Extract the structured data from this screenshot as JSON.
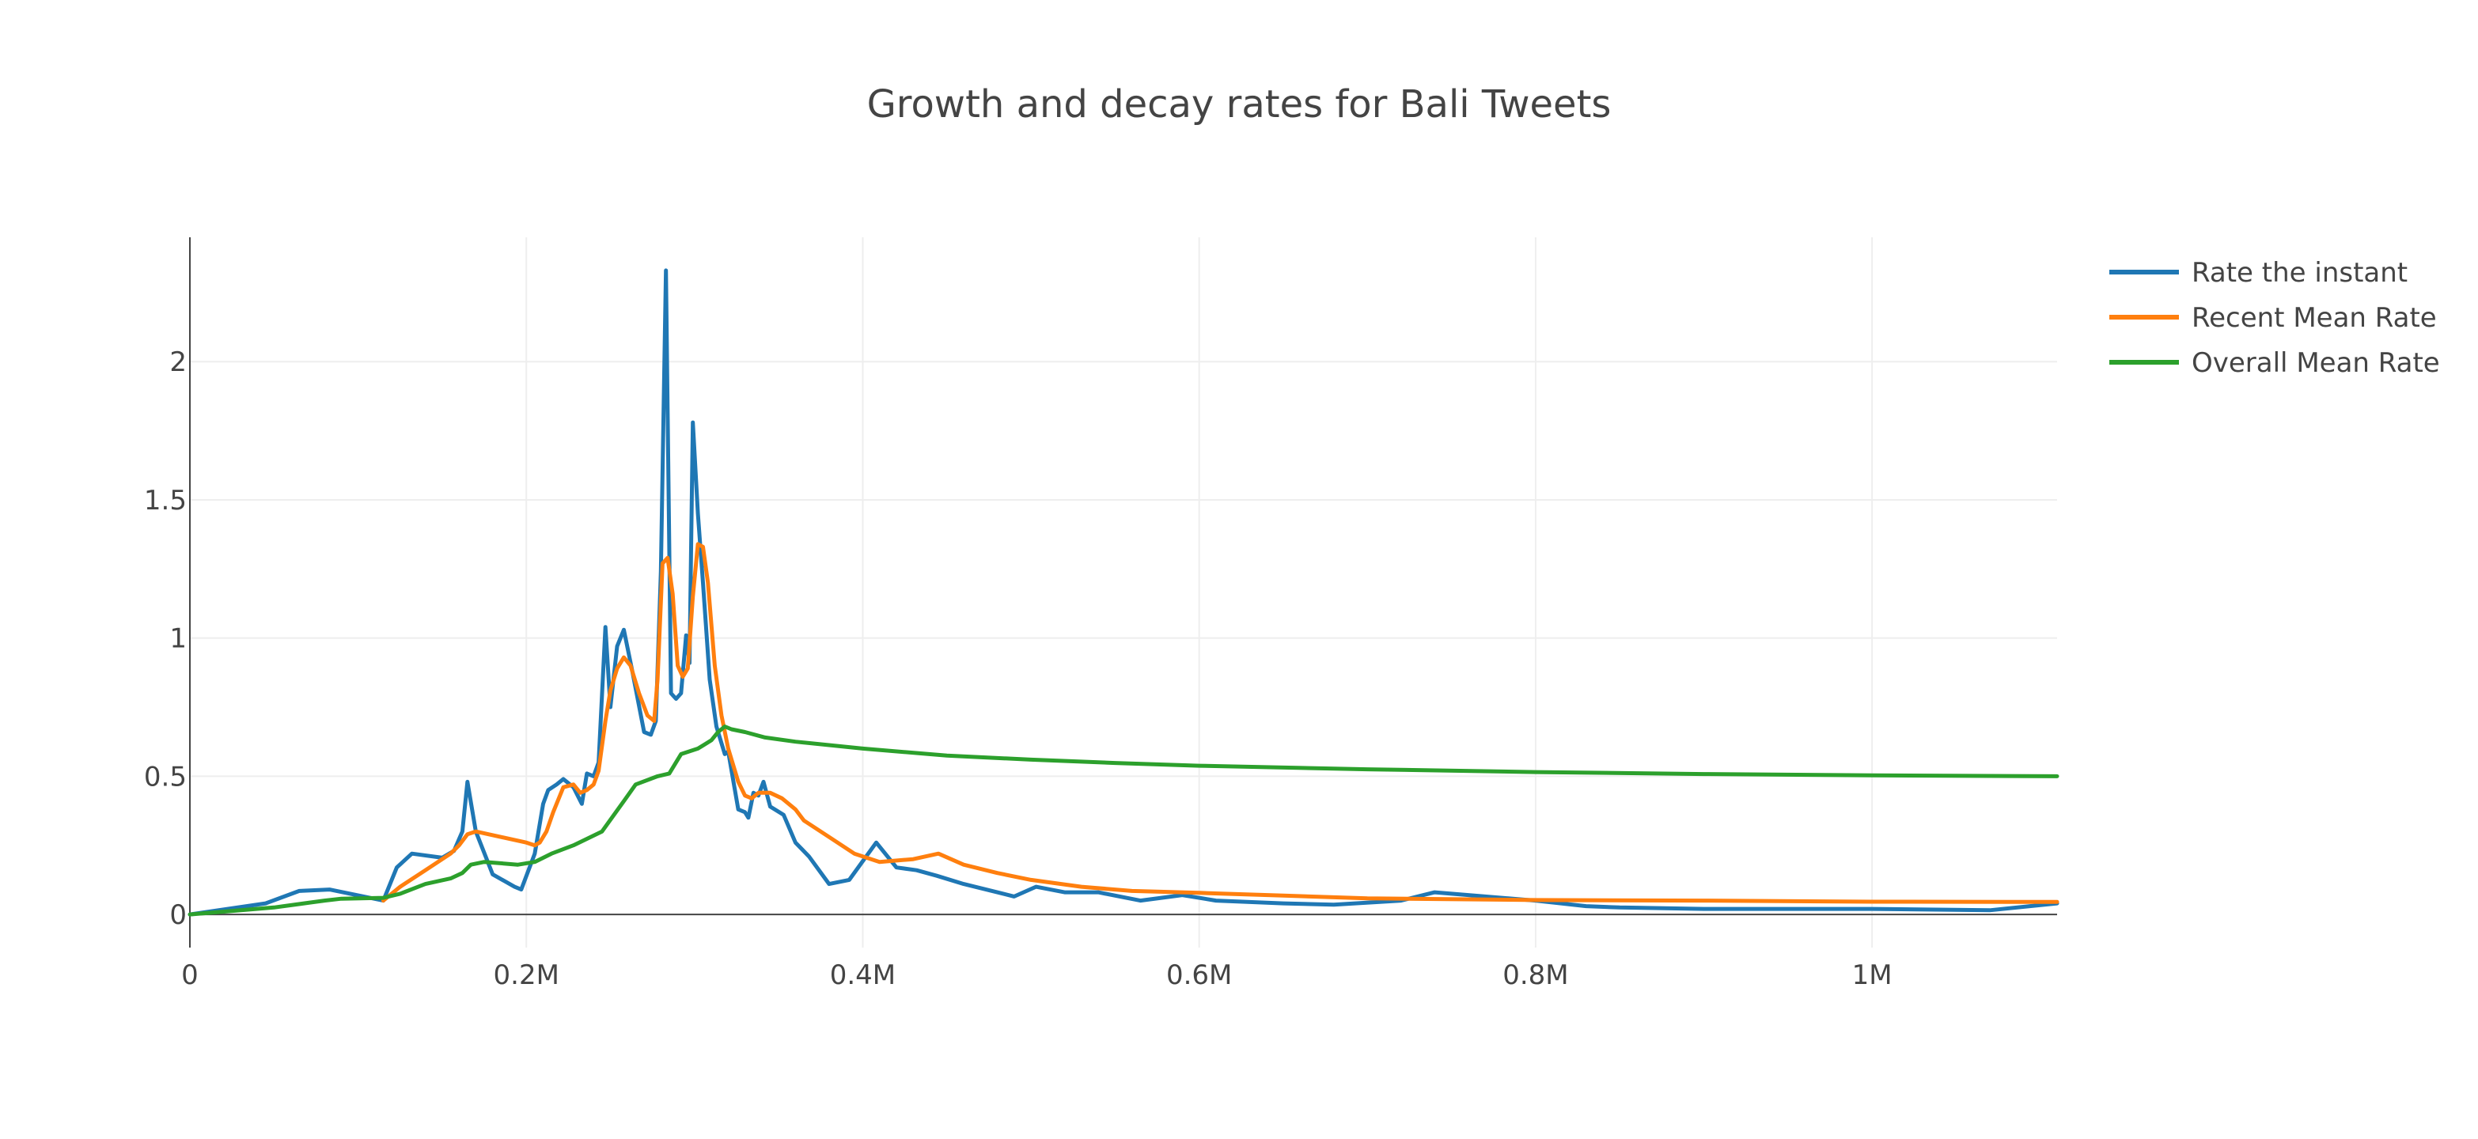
{
  "chart_data": {
    "type": "line",
    "title": "Growth and decay rates for Bali Tweets",
    "xlabel": "",
    "ylabel": "",
    "xlim": [
      0,
      1110000
    ],
    "ylim": [
      -0.12,
      2.45
    ],
    "grid": true,
    "legend_position": "top-right",
    "x_ticks": [
      {
        "value": 0,
        "label": "0"
      },
      {
        "value": 200000,
        "label": "0.2M"
      },
      {
        "value": 400000,
        "label": "0.4M"
      },
      {
        "value": 600000,
        "label": "0.6M"
      },
      {
        "value": 800000,
        "label": "0.8M"
      },
      {
        "value": 1000000,
        "label": "1M"
      }
    ],
    "y_ticks": [
      {
        "value": 0,
        "label": "0"
      },
      {
        "value": 0.5,
        "label": "0.5"
      },
      {
        "value": 1,
        "label": "1"
      },
      {
        "value": 1.5,
        "label": "1.5"
      },
      {
        "value": 2,
        "label": "2"
      }
    ],
    "series": [
      {
        "name": "Rate the instant",
        "color": "#1f77b4",
        "points": [
          [
            0,
            0
          ],
          [
            45000,
            0.04
          ],
          [
            65000,
            0.085
          ],
          [
            83000,
            0.09
          ],
          [
            115000,
            0.05
          ],
          [
            123000,
            0.17
          ],
          [
            132000,
            0.22
          ],
          [
            150000,
            0.205
          ],
          [
            157000,
            0.23
          ],
          [
            162000,
            0.3
          ],
          [
            165000,
            0.48
          ],
          [
            170000,
            0.3
          ],
          [
            180000,
            0.145
          ],
          [
            193000,
            0.1
          ],
          [
            197000,
            0.09
          ],
          [
            205000,
            0.22
          ],
          [
            210000,
            0.4
          ],
          [
            213000,
            0.45
          ],
          [
            218000,
            0.47
          ],
          [
            222000,
            0.49
          ],
          [
            228000,
            0.46
          ],
          [
            233000,
            0.4
          ],
          [
            236000,
            0.51
          ],
          [
            240000,
            0.5
          ],
          [
            243000,
            0.55
          ],
          [
            247000,
            1.04
          ],
          [
            250000,
            0.75
          ],
          [
            254000,
            0.97
          ],
          [
            258000,
            1.03
          ],
          [
            263000,
            0.88
          ],
          [
            270000,
            0.66
          ],
          [
            274000,
            0.65
          ],
          [
            277000,
            0.7
          ],
          [
            280000,
            1.24
          ],
          [
            283000,
            2.33
          ],
          [
            286000,
            0.8
          ],
          [
            289000,
            0.78
          ],
          [
            292000,
            0.8
          ],
          [
            295000,
            1.01
          ],
          [
            297000,
            0.91
          ],
          [
            299000,
            1.78
          ],
          [
            302000,
            1.45
          ],
          [
            305000,
            1.2
          ],
          [
            309000,
            0.85
          ],
          [
            313000,
            0.68
          ],
          [
            318000,
            0.58
          ],
          [
            320000,
            0.59
          ],
          [
            326000,
            0.38
          ],
          [
            330000,
            0.37
          ],
          [
            332000,
            0.35
          ],
          [
            335000,
            0.44
          ],
          [
            338000,
            0.43
          ],
          [
            341000,
            0.48
          ],
          [
            345000,
            0.39
          ],
          [
            353000,
            0.36
          ],
          [
            360000,
            0.26
          ],
          [
            368000,
            0.21
          ],
          [
            380000,
            0.11
          ],
          [
            392000,
            0.125
          ],
          [
            408000,
            0.26
          ],
          [
            420000,
            0.17
          ],
          [
            432000,
            0.16
          ],
          [
            444000,
            0.14
          ],
          [
            460000,
            0.11
          ],
          [
            480000,
            0.08
          ],
          [
            490000,
            0.065
          ],
          [
            503000,
            0.1
          ],
          [
            520000,
            0.08
          ],
          [
            540000,
            0.08
          ],
          [
            565000,
            0.05
          ],
          [
            590000,
            0.07
          ],
          [
            610000,
            0.05
          ],
          [
            650000,
            0.04
          ],
          [
            680000,
            0.035
          ],
          [
            720000,
            0.05
          ],
          [
            740000,
            0.08
          ],
          [
            770000,
            0.065
          ],
          [
            800000,
            0.05
          ],
          [
            830000,
            0.03
          ],
          [
            850000,
            0.025
          ],
          [
            900000,
            0.02
          ],
          [
            950000,
            0.02
          ],
          [
            1000000,
            0.02
          ],
          [
            1070000,
            0.015
          ],
          [
            1110000,
            0.04
          ]
        ]
      },
      {
        "name": "Recent Mean Rate",
        "color": "#ff7f0e",
        "points": [
          [
            115000,
            0.05
          ],
          [
            125000,
            0.1
          ],
          [
            140000,
            0.16
          ],
          [
            155000,
            0.22
          ],
          [
            160000,
            0.25
          ],
          [
            165000,
            0.29
          ],
          [
            170000,
            0.3
          ],
          [
            200000,
            0.26
          ],
          [
            205000,
            0.25
          ],
          [
            208000,
            0.26
          ],
          [
            212000,
            0.3
          ],
          [
            216000,
            0.37
          ],
          [
            222000,
            0.46
          ],
          [
            228000,
            0.47
          ],
          [
            232000,
            0.44
          ],
          [
            236000,
            0.45
          ],
          [
            240000,
            0.47
          ],
          [
            243000,
            0.52
          ],
          [
            247000,
            0.7
          ],
          [
            250000,
            0.81
          ],
          [
            254000,
            0.89
          ],
          [
            258000,
            0.93
          ],
          [
            262000,
            0.9
          ],
          [
            267000,
            0.8
          ],
          [
            272000,
            0.72
          ],
          [
            276000,
            0.7
          ],
          [
            278000,
            0.85
          ],
          [
            281000,
            1.27
          ],
          [
            284000,
            1.29
          ],
          [
            287000,
            1.16
          ],
          [
            290000,
            0.9
          ],
          [
            293000,
            0.86
          ],
          [
            296000,
            0.89
          ],
          [
            299000,
            1.15
          ],
          [
            302000,
            1.34
          ],
          [
            305000,
            1.33
          ],
          [
            308000,
            1.2
          ],
          [
            312000,
            0.9
          ],
          [
            316000,
            0.72
          ],
          [
            320000,
            0.6
          ],
          [
            326000,
            0.48
          ],
          [
            330000,
            0.43
          ],
          [
            334000,
            0.42
          ],
          [
            338000,
            0.44
          ],
          [
            345000,
            0.44
          ],
          [
            352000,
            0.42
          ],
          [
            360000,
            0.38
          ],
          [
            365000,
            0.34
          ],
          [
            380000,
            0.28
          ],
          [
            395000,
            0.22
          ],
          [
            410000,
            0.19
          ],
          [
            430000,
            0.2
          ],
          [
            445000,
            0.22
          ],
          [
            460000,
            0.18
          ],
          [
            480000,
            0.15
          ],
          [
            500000,
            0.125
          ],
          [
            530000,
            0.1
          ],
          [
            560000,
            0.085
          ],
          [
            600000,
            0.078
          ],
          [
            650000,
            0.068
          ],
          [
            700000,
            0.058
          ],
          [
            800000,
            0.052
          ],
          [
            900000,
            0.05
          ],
          [
            1000000,
            0.046
          ],
          [
            1110000,
            0.045
          ]
        ]
      },
      {
        "name": "Overall Mean Rate",
        "color": "#2ca02c",
        "points": [
          [
            0,
            0
          ],
          [
            50000,
            0.025
          ],
          [
            80000,
            0.05
          ],
          [
            90000,
            0.057
          ],
          [
            115000,
            0.06
          ],
          [
            125000,
            0.075
          ],
          [
            140000,
            0.11
          ],
          [
            155000,
            0.13
          ],
          [
            162000,
            0.15
          ],
          [
            167000,
            0.18
          ],
          [
            175000,
            0.19
          ],
          [
            195000,
            0.18
          ],
          [
            205000,
            0.19
          ],
          [
            215000,
            0.22
          ],
          [
            228000,
            0.25
          ],
          [
            245000,
            0.3
          ],
          [
            258000,
            0.41
          ],
          [
            265000,
            0.47
          ],
          [
            278000,
            0.5
          ],
          [
            285000,
            0.51
          ],
          [
            292000,
            0.58
          ],
          [
            302000,
            0.6
          ],
          [
            310000,
            0.63
          ],
          [
            314000,
            0.66
          ],
          [
            318000,
            0.68
          ],
          [
            322000,
            0.67
          ],
          [
            330000,
            0.66
          ],
          [
            342000,
            0.64
          ],
          [
            360000,
            0.625
          ],
          [
            400000,
            0.6
          ],
          [
            450000,
            0.575
          ],
          [
            500000,
            0.56
          ],
          [
            550000,
            0.548
          ],
          [
            600000,
            0.538
          ],
          [
            700000,
            0.525
          ],
          [
            800000,
            0.515
          ],
          [
            900000,
            0.508
          ],
          [
            1000000,
            0.503
          ],
          [
            1110000,
            0.5
          ]
        ]
      }
    ]
  }
}
